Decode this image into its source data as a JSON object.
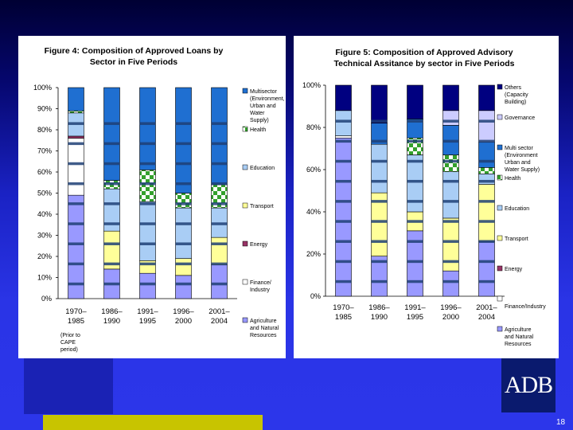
{
  "slide": {
    "page_number": "18",
    "logo_text": "ADB"
  },
  "colors": {
    "agriculture": "#9999ff",
    "finance": "#ffffff",
    "energy": "#993366",
    "transport": "#ffff99",
    "education": "#a9cdf5",
    "health": "#ffffff",
    "multisector": "#1f6fd1",
    "governance": "#ccccff",
    "others": "#000080",
    "band": "#1f3f75"
  },
  "notes": {
    "prior_to_cape": "(Prior to CAPE period)"
  },
  "chart_data": [
    {
      "type": "bar",
      "stacked": true,
      "title": "Figure 4: Composition of Approved Loans by Sector in Five Periods",
      "title_lines": [
        "Figure 4: Composition of Approved Loans by",
        "Sector in Five Periods"
      ],
      "categories": [
        "1970–1985",
        "1986–1990",
        "1991–1995",
        "1996–2000",
        "2001–2004"
      ],
      "category_lines": [
        [
          "1970–",
          "1985"
        ],
        [
          "1986–",
          "1990"
        ],
        [
          "1991–",
          "1995"
        ],
        [
          "1996–",
          "2000"
        ],
        [
          "2001–",
          "2004"
        ]
      ],
      "ylim": [
        0,
        100
      ],
      "yticks": [
        "0%",
        "10%",
        "20%",
        "30%",
        "40%",
        "50%",
        "60%",
        "70%",
        "80%",
        "90%",
        "100%"
      ],
      "series": [
        {
          "name": "Agriculture and Natural Resources",
          "key": "agriculture",
          "values": [
            49,
            14,
            12,
            11,
            16
          ]
        },
        {
          "name": "Finance/ Industry",
          "key": "finance",
          "values": [
            27,
            0,
            0,
            0,
            0
          ]
        },
        {
          "name": "Energy",
          "key": "energy",
          "values": [
            1,
            0,
            0,
            0,
            0
          ]
        },
        {
          "name": "Transport",
          "key": "transport",
          "values": [
            0,
            18,
            6,
            8,
            13
          ]
        },
        {
          "name": "Education",
          "key": "education",
          "values": [
            11,
            20,
            28,
            24,
            14
          ]
        },
        {
          "name": "Health",
          "key": "health",
          "values": [
            1,
            4,
            15,
            7,
            11
          ]
        },
        {
          "name": "Multisector (Environment, Urban and Water Supply)",
          "key": "multisector",
          "values": [
            11,
            44,
            39,
            50,
            46
          ]
        }
      ],
      "legend_top_to_bottom": [
        {
          "label": "Multisector (Environment, Urban and Water Supply)",
          "key": "multisector"
        },
        {
          "label": "Health",
          "key": "health"
        },
        {
          "label": "Education",
          "key": "education"
        },
        {
          "label": "Transport",
          "key": "transport"
        },
        {
          "label": "Energy",
          "key": "energy"
        },
        {
          "label": "Finance/ Industry",
          "key": "finance"
        },
        {
          "label": "Agriculture and Natural Resources",
          "key": "agriculture"
        }
      ],
      "legend_position": "right"
    },
    {
      "type": "bar",
      "stacked": true,
      "title": "Figure 5: Composition of Approved Advisory Technical Assitance by sector in Five Periods",
      "title_lines": [
        "Figure 5: Composition of Approved Advisory",
        "Technical Assitance by sector in Five Periods"
      ],
      "categories": [
        "1970–1985",
        "1986–1990",
        "1991–1995",
        "1996–2000",
        "2001–2004"
      ],
      "category_lines": [
        [
          "1970–",
          "1985"
        ],
        [
          "1986–",
          "1990"
        ],
        [
          "1991–",
          "1995"
        ],
        [
          "1996–",
          "2000"
        ],
        [
          "2001–",
          "2004"
        ]
      ],
      "ylim": [
        0,
        100
      ],
      "yticks": [
        "0%",
        "20%",
        "40%",
        "60%",
        "80%",
        "100%"
      ],
      "series": [
        {
          "name": "Agriculture and Natural Resources",
          "key": "agriculture",
          "values": [
            75,
            19,
            31,
            12,
            26
          ]
        },
        {
          "name": "Finance/Industry",
          "key": "finance",
          "values": [
            1,
            0,
            0,
            0,
            0
          ]
        },
        {
          "name": "Energy",
          "key": "energy",
          "values": [
            0,
            0,
            0,
            0,
            0
          ]
        },
        {
          "name": "Transport",
          "key": "transport",
          "values": [
            0,
            30,
            9,
            25,
            27
          ]
        },
        {
          "name": "Education",
          "key": "education",
          "values": [
            12,
            23,
            27,
            22,
            5
          ]
        },
        {
          "name": "Health",
          "key": "health",
          "values": [
            0,
            0,
            8,
            8,
            3
          ]
        },
        {
          "name": "Multi sector (Environment Urban and Water Supply)",
          "key": "multisector",
          "values": [
            0,
            10,
            9,
            14,
            12
          ]
        },
        {
          "name": "Governance",
          "key": "governance",
          "values": [
            0,
            0,
            0,
            7,
            15
          ]
        },
        {
          "name": "Others (Capacity Building)",
          "key": "others",
          "values": [
            12,
            18,
            16,
            12,
            12
          ]
        }
      ],
      "legend_top_to_bottom": [
        {
          "label": "Others (Capacity Building)",
          "key": "others"
        },
        {
          "label": "Governance",
          "key": "governance"
        },
        {
          "label": "Multi sector (Environment Urban and Water Supply)",
          "key": "multisector"
        },
        {
          "label": "Health",
          "key": "health"
        },
        {
          "label": "Education",
          "key": "education"
        },
        {
          "label": "Transport",
          "key": "transport"
        },
        {
          "label": "Energy",
          "key": "energy"
        },
        {
          "label": "Finance/Industry",
          "key": "finance"
        },
        {
          "label": "Agriculture and Natural Resources",
          "key": "agriculture"
        }
      ],
      "legend_position": "right"
    }
  ]
}
